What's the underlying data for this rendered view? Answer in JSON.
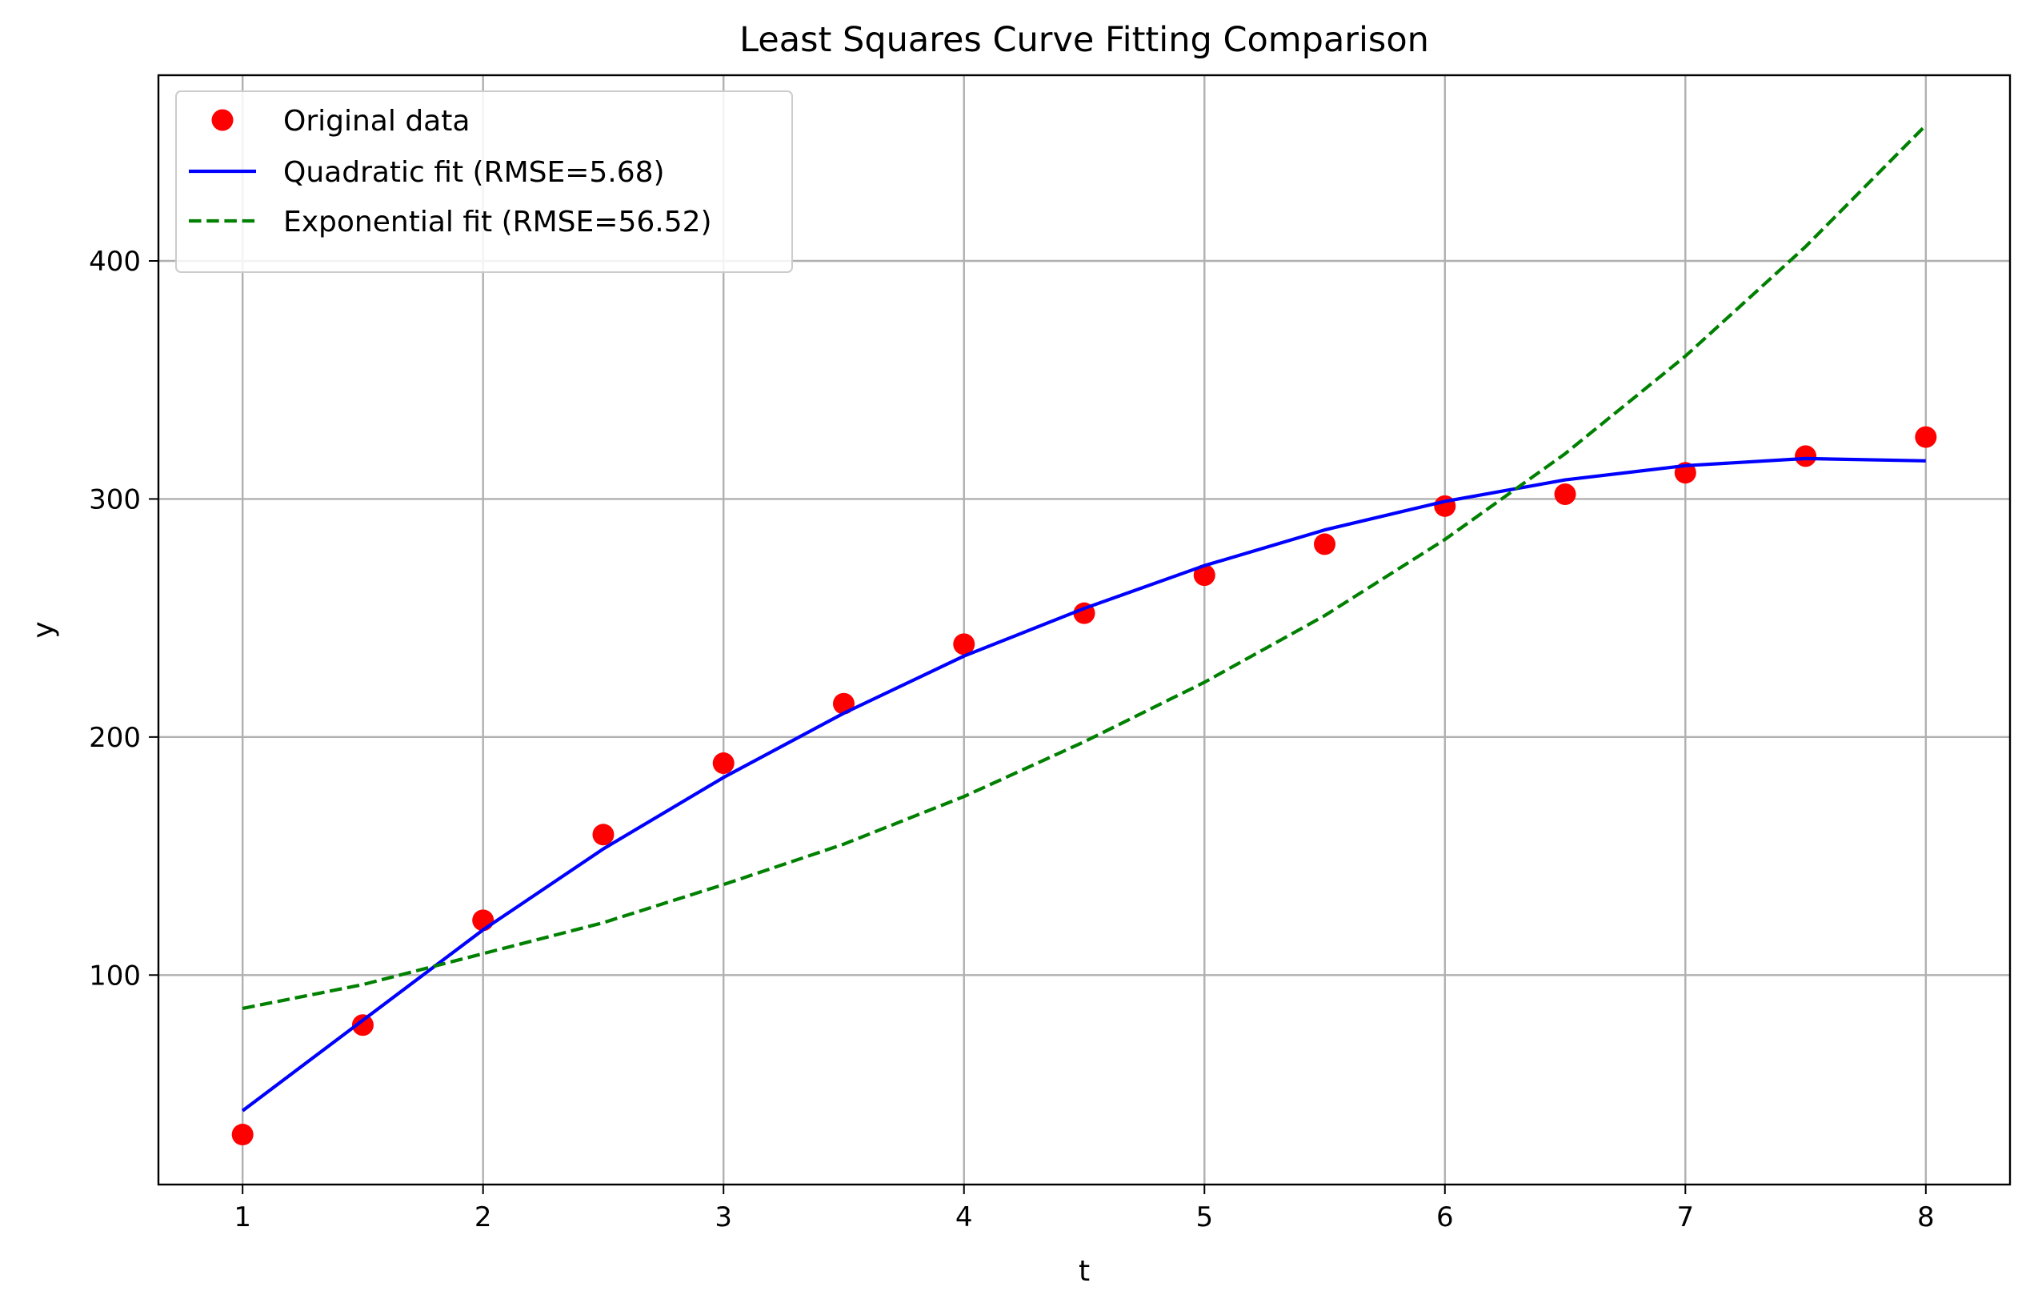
{
  "chart_data": {
    "type": "line",
    "title": "Least Squares Curve Fitting Comparison",
    "xlabel": "t",
    "ylabel": "y",
    "xlim": [
      0.65,
      8.35
    ],
    "ylim": [
      12,
      478
    ],
    "xticks": [
      1,
      2,
      3,
      4,
      5,
      6,
      7,
      8
    ],
    "yticks": [
      100,
      200,
      300,
      400
    ],
    "grid": true,
    "legend_position": "top-left",
    "series": [
      {
        "name": "Original data",
        "kind": "scatter",
        "color": "#ff0000",
        "x": [
          1,
          1.5,
          2,
          2.5,
          3,
          3.5,
          4,
          4.5,
          5,
          5.5,
          6,
          6.5,
          7,
          7.5,
          8
        ],
        "y": [
          33,
          79,
          123,
          159,
          189,
          214,
          239,
          252,
          268,
          281,
          297,
          302,
          311,
          318,
          326
        ]
      },
      {
        "name": "Quadratic fit (RMSE=5.68)",
        "kind": "line",
        "style": "solid",
        "color": "#0000ff",
        "x": [
          1,
          1.5,
          2,
          2.5,
          3,
          3.5,
          4,
          4.5,
          5,
          5.5,
          6,
          6.5,
          7,
          7.5,
          8
        ],
        "y": [
          43,
          81,
          119,
          153,
          183,
          210,
          234,
          254,
          272,
          287,
          299,
          308,
          314,
          317,
          316
        ]
      },
      {
        "name": "Exponential fit (RMSE=56.52)",
        "kind": "line",
        "style": "dashed",
        "color": "#008000",
        "x": [
          1,
          1.5,
          2,
          2.5,
          3,
          3.5,
          4,
          4.5,
          5,
          5.5,
          6,
          6.5,
          7,
          7.5,
          8
        ],
        "y": [
          86,
          96,
          109,
          122,
          138,
          155,
          175,
          198,
          223,
          251,
          283,
          319,
          360,
          406,
          457
        ]
      }
    ]
  }
}
